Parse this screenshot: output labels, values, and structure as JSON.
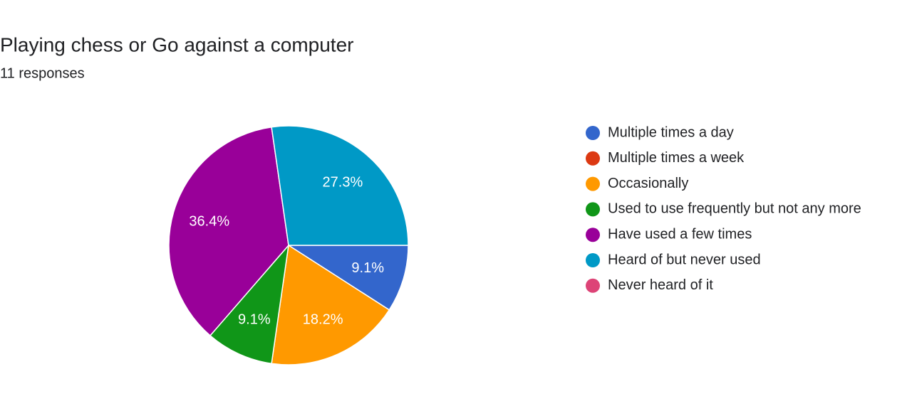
{
  "chart_data": {
    "type": "pie",
    "title": "Playing chess or Go against a computer",
    "subtitle": "11 responses",
    "categories": [
      "Multiple times a day",
      "Multiple times a week",
      "Occasionally",
      "Used to use frequently but not any more",
      "Have used a few times",
      "Heard of but never used",
      "Never heard of it"
    ],
    "values": [
      9.1,
      0,
      18.2,
      9.1,
      36.4,
      27.3,
      0
    ],
    "value_labels": [
      "9.1%",
      null,
      "18.2%",
      "9.1%",
      "36.4%",
      "27.3%",
      null
    ],
    "colors": [
      "#3366cc",
      "#dc3912",
      "#ff9900",
      "#109618",
      "#990099",
      "#0099c6",
      "#dd4477"
    ],
    "legend": "right"
  }
}
